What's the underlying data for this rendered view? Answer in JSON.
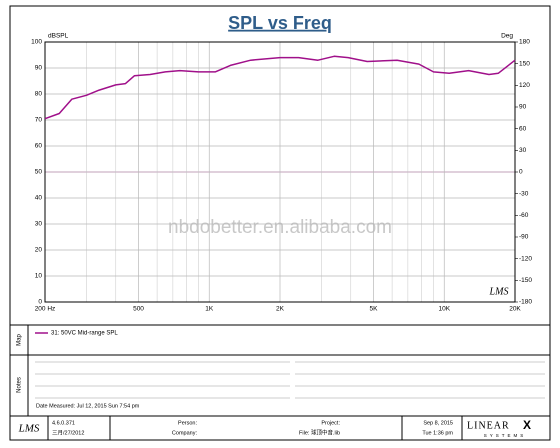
{
  "chart_data": {
    "type": "line",
    "title": "SPL vs Freq",
    "y_label": "dBSPL",
    "y2_label": "Deg",
    "x": [
      200,
      230,
      260,
      300,
      340,
      400,
      440,
      480,
      560,
      650,
      750,
      900,
      1060,
      1230,
      1500,
      2000,
      2400,
      2900,
      3400,
      3900,
      4700,
      6300,
      7800,
      9000,
      10500,
      12700,
      15500,
      17000,
      20000
    ],
    "series": [
      {
        "name": "31: 50VC Mid-range SPL",
        "color": "#a0108a",
        "values": [
          70.5,
          72.5,
          78,
          79.5,
          81.5,
          83.5,
          84,
          87,
          87.5,
          88.5,
          89,
          88.5,
          88.5,
          91,
          93,
          94,
          94,
          93,
          94.5,
          94,
          92.5,
          93,
          91.5,
          88.5,
          88,
          89,
          87.5,
          88,
          93
        ]
      }
    ],
    "xlog": true,
    "xlim": [
      200,
      20000
    ],
    "xticks": [
      {
        "value": 200,
        "label": "200  Hz"
      },
      500,
      {
        "value": 1000,
        "label": "1K"
      },
      {
        "value": 2000,
        "label": "2K"
      },
      {
        "value": 5000,
        "label": "5K"
      },
      {
        "value": 10000,
        "label": "10K"
      },
      {
        "value": 20000,
        "label": "20K"
      }
    ],
    "xgrid_minor": [
      300,
      400,
      600,
      700,
      800,
      900,
      3000,
      4000,
      6000,
      7000,
      8000,
      9000
    ],
    "ylim": [
      0,
      100
    ],
    "yticks": [
      0,
      10,
      20,
      30,
      40,
      50,
      60,
      70,
      80,
      90,
      100
    ],
    "y2lim": [
      -180,
      180
    ],
    "y2ticks": [
      -180,
      -150,
      -120,
      -90,
      -60,
      -30,
      0,
      30,
      60,
      90,
      120,
      150,
      180
    ],
    "grid": true,
    "watermark": "nbdobetter.en.alibaba.com",
    "logo": "LMS"
  },
  "panels": {
    "map": "Map",
    "notes": "Notes",
    "date_measured": "Date Measured: Jul 12, 2015  Sun  7:54 pm"
  },
  "footer": {
    "logo": "LMS",
    "version": "4.6.0.371",
    "date": "三月/27/2012",
    "person": "Person:",
    "company": "Company:",
    "project": "Project:",
    "file": "File: 球顶中音.lib",
    "print_date": "Sep  8, 2015",
    "print_time": "Tue  1:36 pm",
    "brand": "LINEAR",
    "brand_x": "X",
    "brand_sub": "SYSTEMS"
  }
}
